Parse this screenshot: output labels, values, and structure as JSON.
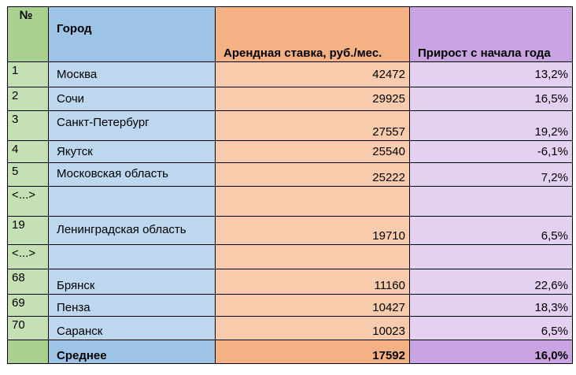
{
  "table": {
    "headers": {
      "num": "№",
      "city": "Город",
      "rent": "Арендная ставка, руб./мес.",
      "growth": "Прирост с начала года"
    },
    "rows": [
      {
        "num": "1",
        "city": "Москва",
        "rent": "42472",
        "growth": "13,2%"
      },
      {
        "num": "2",
        "city": "Сочи",
        "rent": "29925",
        "growth": "16,5%"
      },
      {
        "num": "3",
        "city": "Санкт-Петербург",
        "rent": "27557",
        "growth": "19,2%"
      },
      {
        "num": "4",
        "city": "Якутск",
        "rent": "25540",
        "growth": "-6,1%"
      },
      {
        "num": "5",
        "city": "Московская область",
        "rent": "25222",
        "growth": "7,2%"
      },
      {
        "num": "<...>",
        "city": "",
        "rent": "",
        "growth": ""
      },
      {
        "num": "19",
        "city": "Ленинградская область",
        "rent": "19710",
        "growth": "6,5%"
      },
      {
        "num": "<...>",
        "city": "",
        "rent": "",
        "growth": ""
      },
      {
        "num": "68",
        "city": "Брянск",
        "rent": "11160",
        "growth": "22,6%"
      },
      {
        "num": "69",
        "city": "Пенза",
        "rent": "10427",
        "growth": "18,3%"
      },
      {
        "num": "70",
        "city": "Саранск",
        "rent": "10023",
        "growth": "6,5%"
      }
    ],
    "footer": {
      "num": "",
      "city": "Среднее",
      "rent": "17592",
      "growth": "16,0%"
    }
  }
}
